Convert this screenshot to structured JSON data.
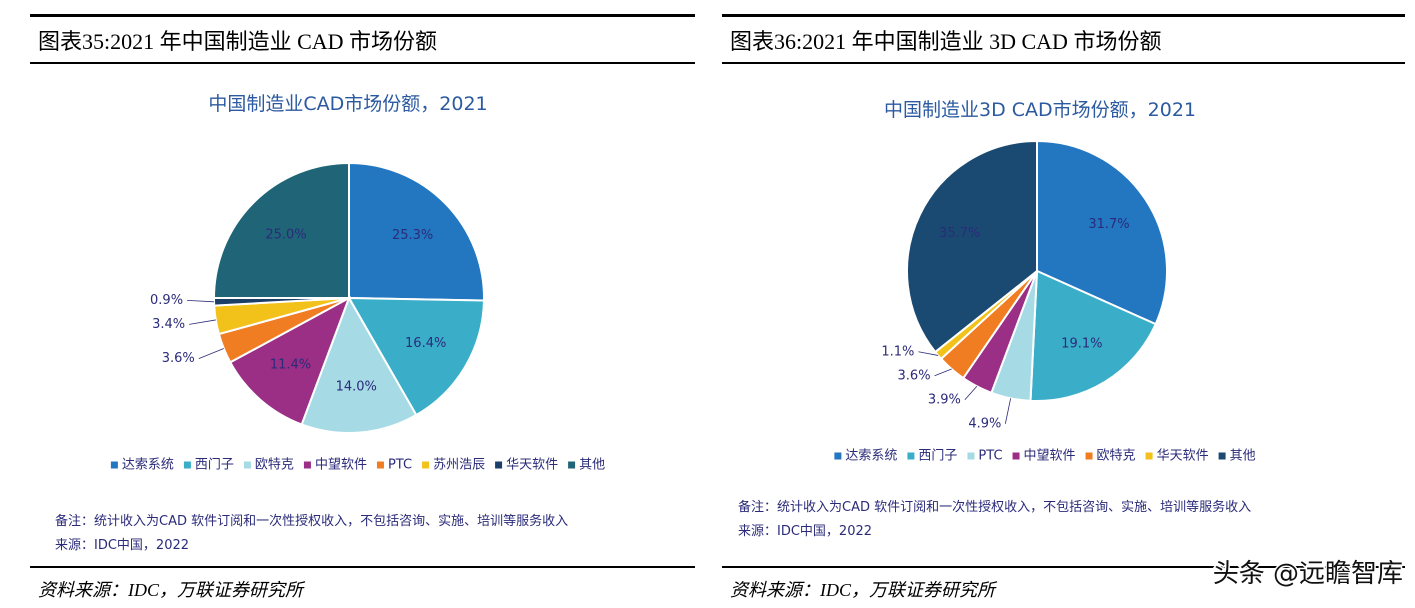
{
  "panels": [
    {
      "heading": "图表35:2021 年中国制造业 CAD 市场份额",
      "source": "资料来源：IDC，万联证券研究所"
    },
    {
      "heading": "图表36:2021 年中国制造业 3D CAD 市场份额",
      "source": "资料来源：IDC，万联证券研究所"
    }
  ],
  "chart_data": [
    {
      "type": "pie",
      "title": "中国制造业CAD市场份额，2021",
      "categories": [
        "达索系统",
        "西门子",
        "欧特克",
        "中望软件",
        "PTC",
        "苏州浩辰",
        "华天软件",
        "其他"
      ],
      "values": [
        25.3,
        16.4,
        14.0,
        11.4,
        3.6,
        3.4,
        0.9,
        25.0
      ],
      "value_labels": [
        "25.3%",
        "16.4%",
        "14.0%",
        "11.4%",
        "3.6%",
        "3.4%",
        "0.9%",
        "25.0%"
      ],
      "colors": [
        "#2277c0",
        "#3aaec8",
        "#a6dbe6",
        "#9b2f86",
        "#f07d22",
        "#f2c21b",
        "#1b3f66",
        "#1f6577"
      ],
      "notes": [
        "备注：统计收入为CAD 软件订阅和一次性授权收入，不包括咨询、实施、培训等服务收入",
        "来源：IDC中国，2022"
      ]
    },
    {
      "type": "pie",
      "title": "中国制造业3D CAD市场份额，2021",
      "categories": [
        "达索系统",
        "西门子",
        "PTC",
        "中望软件",
        "欧特克",
        "华天软件",
        "其他"
      ],
      "values": [
        31.7,
        19.1,
        4.9,
        3.9,
        3.6,
        1.1,
        35.7
      ],
      "value_labels": [
        "31.7%",
        "19.1%",
        "4.9%",
        "3.9%",
        "3.6%",
        "1.1%",
        "35.7%"
      ],
      "colors": [
        "#2277c0",
        "#3aaec8",
        "#a6dbe6",
        "#9b2f86",
        "#f07d22",
        "#f2c21b",
        "#1a4a72"
      ],
      "notes": [
        "备注：统计收入为CAD 软件订阅和一次性授权收入，不包括咨询、实施、培训等服务收入",
        "来源：IDC中国，2022"
      ]
    }
  ],
  "watermark": "头条 @远瞻智库"
}
